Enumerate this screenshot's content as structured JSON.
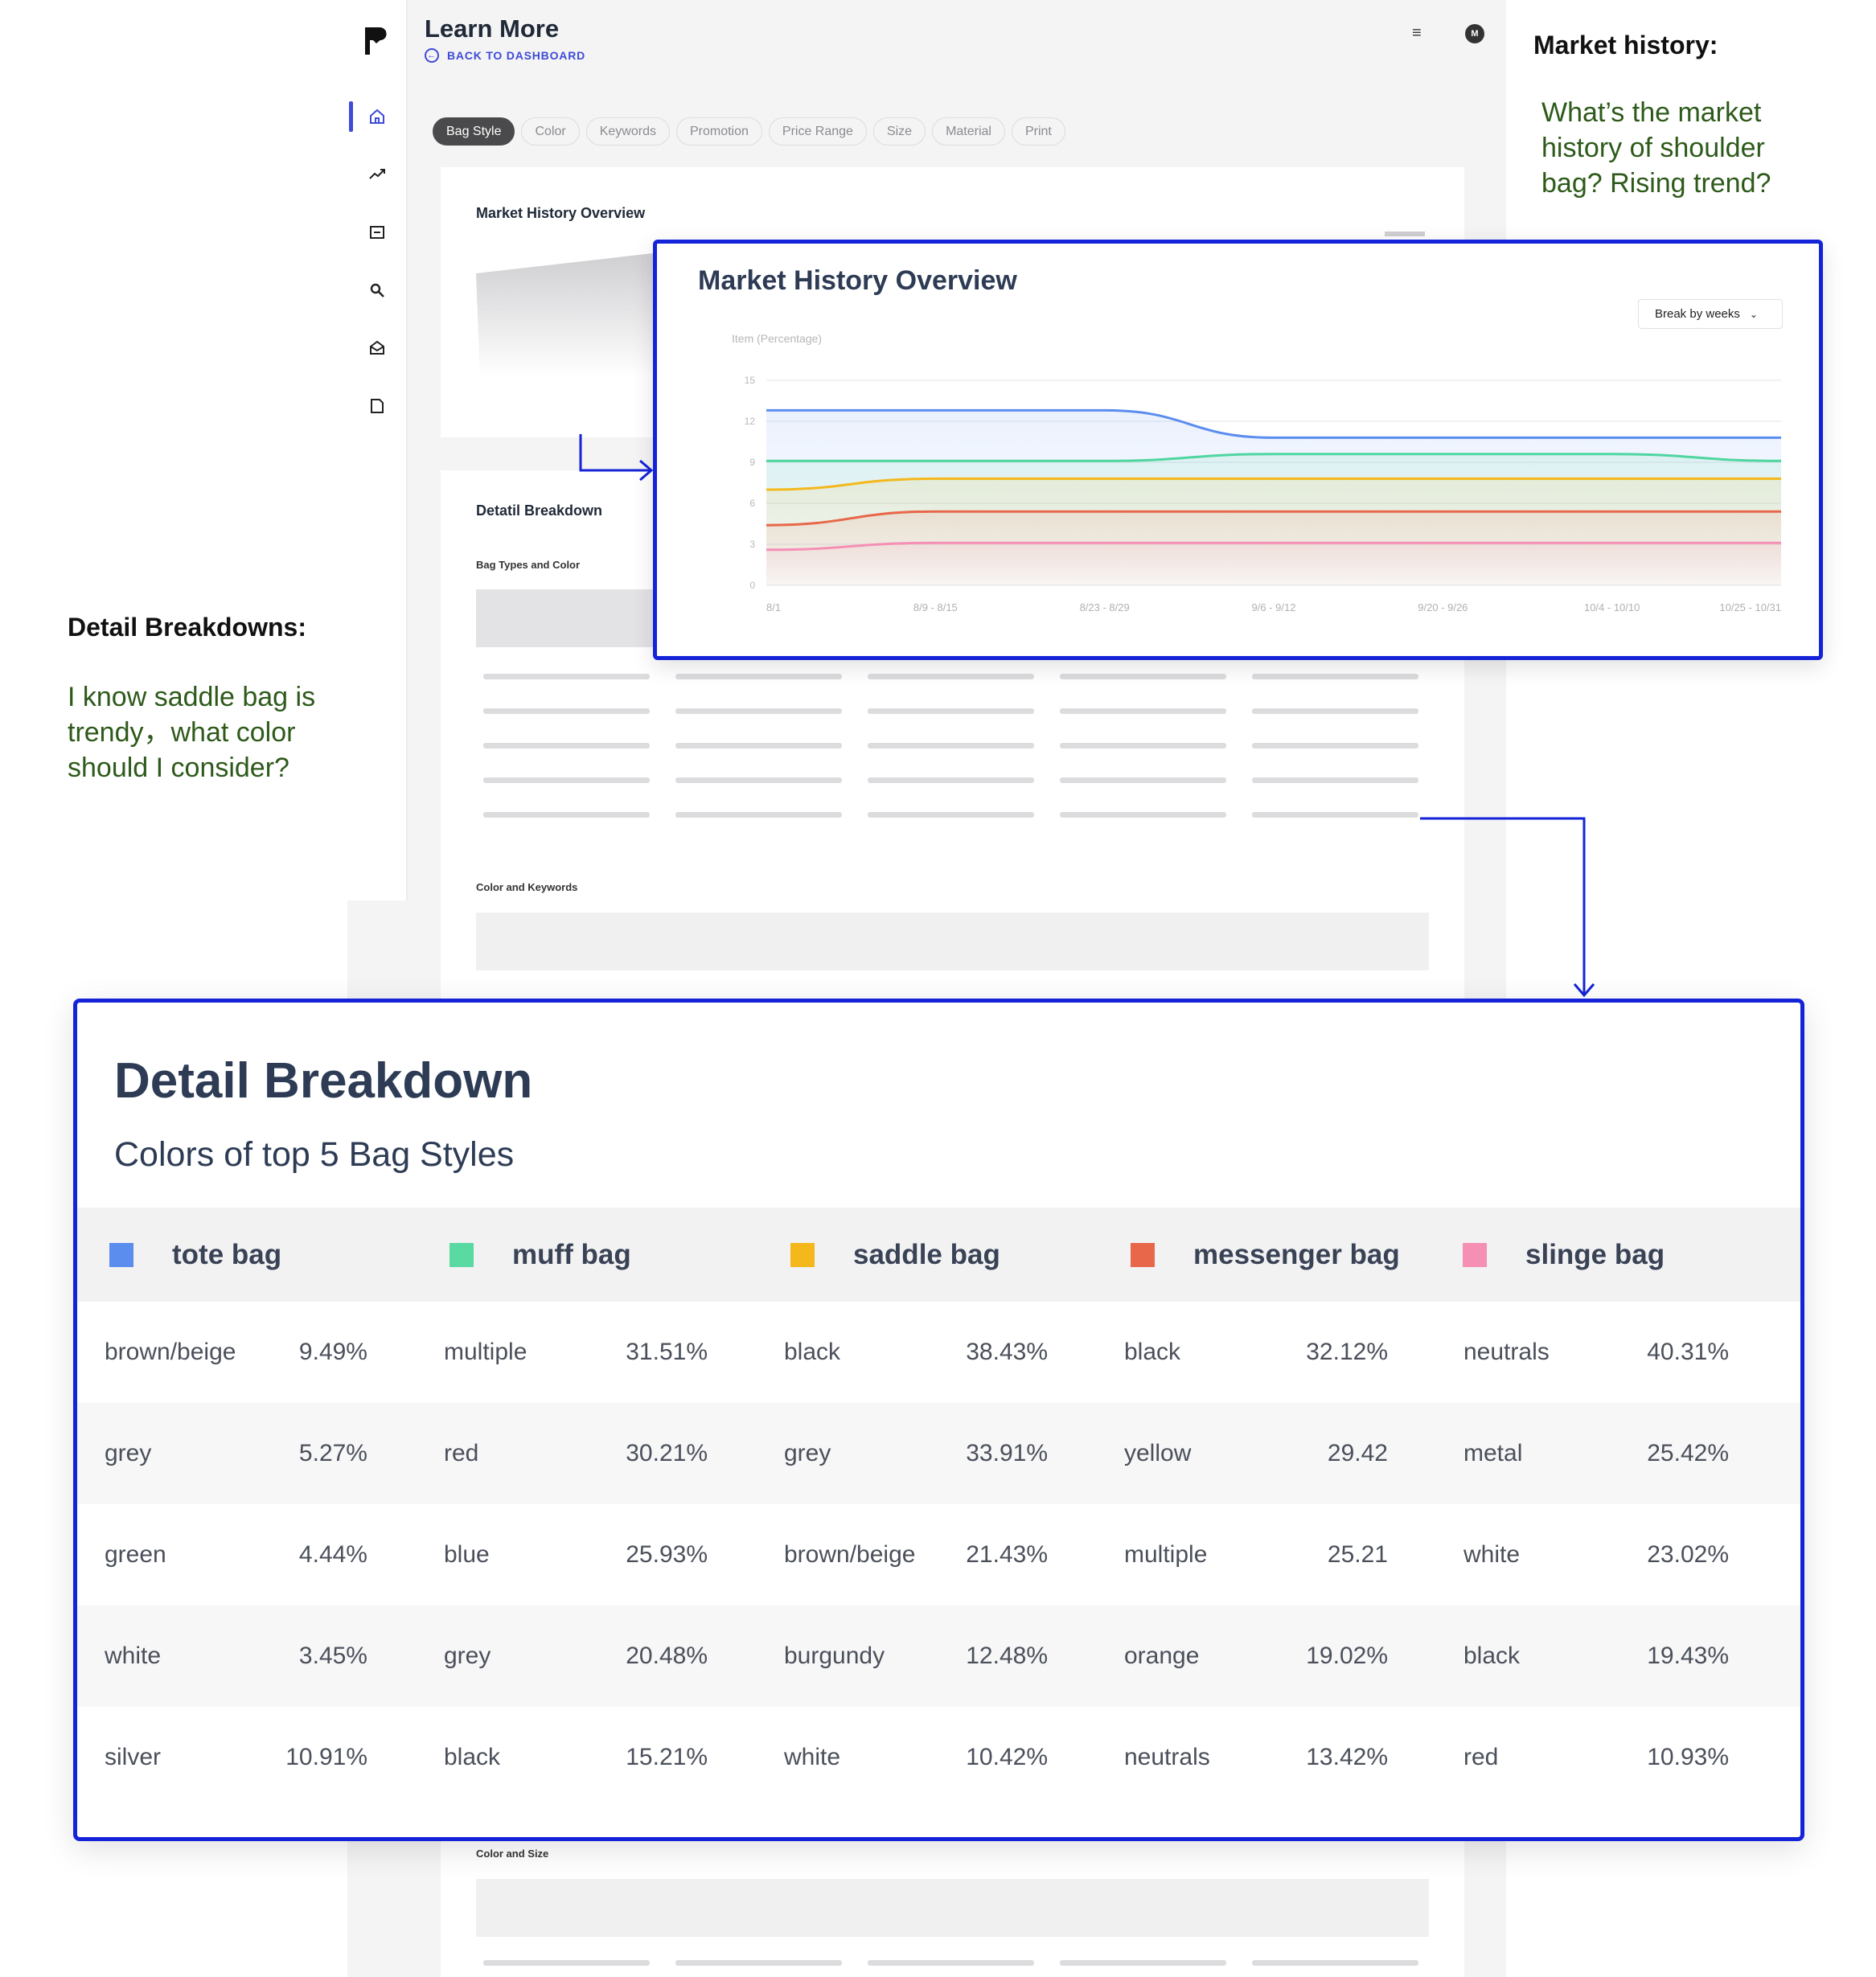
{
  "app": {
    "title": "Learn More",
    "back_link": "BACK TO DASHBOARD",
    "avatar_initial": "M",
    "sidebar_icons": [
      "home-icon",
      "trend-icon",
      "folder-icon",
      "search-icon",
      "mail-icon",
      "document-icon"
    ]
  },
  "tabs": [
    "Bag Style",
    "Color",
    "Keywords",
    "Promotion",
    "Price Range",
    "Size",
    "Material",
    "Print"
  ],
  "active_tab": "Bag Style",
  "background": {
    "market_history_title": "Market History Overview",
    "detail_breakdown_title": "Detatil Breakdown",
    "bag_types_label": "Bag Types and Color",
    "color_keywords_label": "Color  and Keywords",
    "color_size_label": "Color and Size"
  },
  "annotations": {
    "market_history_heading": "Market history:",
    "market_history_question": "What’s the market history of shoulder bag? Rising trend?",
    "detail_heading": "Detail Breakdowns:",
    "detail_question": "I know saddle bag is trendy，what color should I consider?"
  },
  "market_history": {
    "title": "Market History Overview",
    "dropdown_label": "Break by weeks"
  },
  "chart_data": {
    "type": "area",
    "title": "Market History Overview",
    "ylabel": "Item (Percentage)",
    "ylim": [
      0,
      15
    ],
    "yticks": [
      0,
      3,
      6,
      9,
      12,
      15
    ],
    "x_tick_labels": [
      "8/1",
      "8/9 - 8/15",
      "8/23 - 8/29",
      "9/6 - 9/12",
      "9/20 - 9/26",
      "10/4 - 10/10",
      "10/25 - 10/31"
    ],
    "grid": true,
    "series": [
      {
        "color": "#5b8def",
        "values": [
          12.8,
          12.8,
          12.8,
          10.8,
          10.8,
          10.8,
          10.8
        ]
      },
      {
        "color": "#4fd6a0",
        "values": [
          9.1,
          9.1,
          9.1,
          9.6,
          9.6,
          9.6,
          9.1
        ]
      },
      {
        "color": "#f4b81c",
        "values": [
          7.0,
          7.8,
          7.8,
          7.8,
          7.8,
          7.8,
          7.8
        ]
      },
      {
        "color": "#e8674a",
        "values": [
          4.4,
          5.4,
          5.4,
          5.4,
          5.4,
          5.4,
          5.4
        ]
      },
      {
        "color": "#f58fb4",
        "values": [
          2.6,
          3.1,
          3.1,
          3.1,
          3.1,
          3.1,
          3.1
        ]
      }
    ]
  },
  "detail_breakdown": {
    "title": "Detail Breakdown",
    "subtitle": "Colors of top 5 Bag Styles",
    "columns": [
      {
        "name": "tote bag",
        "color": "#5b8def"
      },
      {
        "name": "muff bag",
        "color": "#5ad9a3"
      },
      {
        "name": "saddle bag",
        "color": "#f4b81c"
      },
      {
        "name": "messenger bag",
        "color": "#e8674a"
      },
      {
        "name": "slinge bag",
        "color": "#f58fb4"
      }
    ],
    "rows": [
      [
        [
          "brown/beige",
          "9.49%"
        ],
        [
          "multiple",
          "31.51%"
        ],
        [
          "black",
          "38.43%"
        ],
        [
          "black",
          "32.12%"
        ],
        [
          "neutrals",
          "40.31%"
        ]
      ],
      [
        [
          "grey",
          "5.27%"
        ],
        [
          "red",
          "30.21%"
        ],
        [
          "grey",
          "33.91%"
        ],
        [
          "yellow",
          "29.42"
        ],
        [
          "metal",
          "25.42%"
        ]
      ],
      [
        [
          "green",
          "4.44%"
        ],
        [
          "blue",
          "25.93%"
        ],
        [
          "brown/beige",
          "21.43%"
        ],
        [
          "multiple",
          "25.21"
        ],
        [
          "white",
          "23.02%"
        ]
      ],
      [
        [
          "white",
          "3.45%"
        ],
        [
          "grey",
          "20.48%"
        ],
        [
          "burgundy",
          "12.48%"
        ],
        [
          "orange",
          "19.02%"
        ],
        [
          "black",
          "19.43%"
        ]
      ],
      [
        [
          "silver",
          "10.91%"
        ],
        [
          "black",
          "15.21%"
        ],
        [
          "white",
          "10.42%"
        ],
        [
          "neutrals",
          "13.42%"
        ],
        [
          "red",
          "10.93%"
        ]
      ]
    ]
  }
}
